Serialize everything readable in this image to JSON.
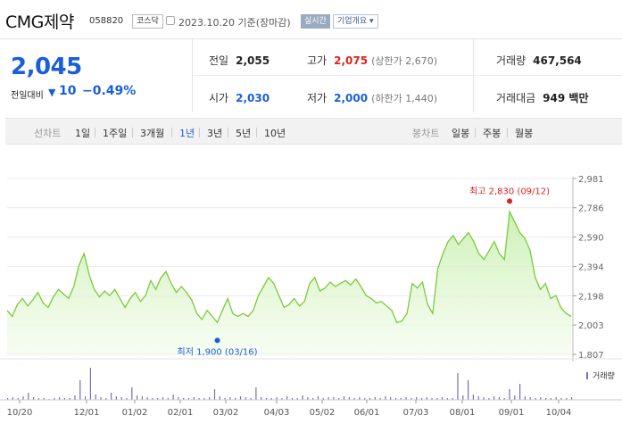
{
  "header": {
    "title": "CMG제약",
    "code": "058820",
    "market_badge": "코스닥",
    "date": "2023.10.20 기준(장마감)",
    "realtime_badge": "실시간",
    "corp_button": "기업개요 ▾"
  },
  "price": {
    "current": "2,045",
    "change_label": "전일대비",
    "change_icon": "down-triangle-icon",
    "change_value": "10",
    "change_pct": "−0.49%"
  },
  "stats": {
    "prev_close_label": "전일",
    "prev_close": "2,055",
    "high_label": "고가",
    "high": "2,075",
    "upper_limit": "(상한가 2,670)",
    "volume_label": "거래량",
    "volume": "467,564",
    "open_label": "시가",
    "open": "2,030",
    "low_label": "저가",
    "low": "2,000",
    "lower_limit": "(하한가 1,440)",
    "amount_label": "거래대금",
    "amount": "949 백만"
  },
  "toolbar": {
    "line_label": "선차트",
    "periods": [
      "1일",
      "1주일",
      "3개월",
      "1년",
      "3년",
      "5년",
      "10년"
    ],
    "active_period": "1년",
    "candle_label": "봉차트",
    "candle_periods": [
      "일봉",
      "주봉",
      "월봉"
    ]
  },
  "chart_data": {
    "type": "area",
    "y_ticks": [
      2981,
      2786,
      2590,
      2394,
      2198,
      2003,
      1807
    ],
    "y_tick_labels": [
      "2,981",
      "2,786",
      "2,590",
      "2,394",
      "2,198",
      "2,003",
      "1,807"
    ],
    "ylim": [
      1807,
      2981
    ],
    "x_ticks": [
      "10/20",
      "12/01",
      "01/02",
      "02/01",
      "03/02",
      "04/03",
      "05/02",
      "06/01",
      "07/03",
      "08/01",
      "09/01",
      "10/04"
    ],
    "max_annotation": "최고 2,830 (09/12)",
    "min_annotation": "최저 1,900 (03/16)",
    "max_value": 2830,
    "min_value": 1900,
    "volume_label": "거래량",
    "values": [
      2100,
      2060,
      2140,
      2180,
      2130,
      2170,
      2220,
      2150,
      2120,
      2190,
      2240,
      2210,
      2180,
      2260,
      2400,
      2480,
      2340,
      2240,
      2190,
      2230,
      2200,
      2240,
      2180,
      2120,
      2180,
      2220,
      2160,
      2200,
      2300,
      2240,
      2320,
      2360,
      2280,
      2220,
      2260,
      2220,
      2170,
      2080,
      2040,
      2100,
      2060,
      2020,
      2100,
      2180,
      2080,
      2060,
      2080,
      2060,
      2100,
      2200,
      2260,
      2320,
      2280,
      2200,
      2120,
      2140,
      2180,
      2130,
      2160,
      2280,
      2320,
      2230,
      2250,
      2290,
      2260,
      2280,
      2300,
      2270,
      2310,
      2260,
      2200,
      2180,
      2150,
      2160,
      2130,
      2100,
      2020,
      2030,
      2080,
      2280,
      2250,
      2290,
      2140,
      2080,
      2380,
      2480,
      2560,
      2600,
      2540,
      2580,
      2620,
      2560,
      2480,
      2440,
      2500,
      2560,
      2480,
      2440,
      2760,
      2690,
      2620,
      2580,
      2500,
      2320,
      2240,
      2280,
      2180,
      2200,
      2120,
      2080,
      2060
    ]
  }
}
